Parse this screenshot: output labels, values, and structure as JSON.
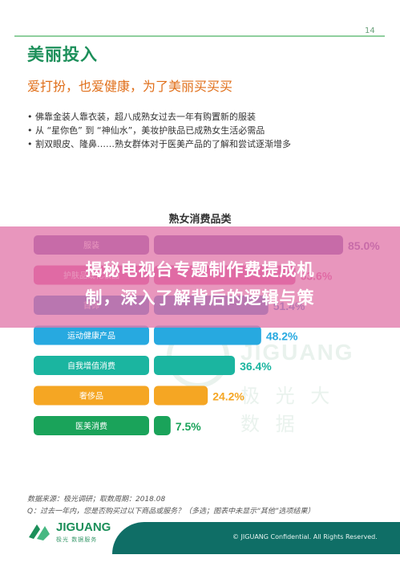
{
  "page": {
    "number": "14"
  },
  "header": {
    "title": "美丽投入",
    "subtitle": "爱打扮，也爱健康，为了美丽买买买"
  },
  "bullets": [
    "• 佛靠金装人靠衣装，超八成熟女过去一年有购置新的服装",
    "• 从 “星你色” 到 “神仙水”，美妆护肤品已成熟女生活必需品",
    "• 割双眼皮、隆鼻……熟女群体对于医美产品的了解和尝试逐渐增多"
  ],
  "colors": {
    "accent": "#1c8f5a",
    "subtitle": "#e06f1a",
    "footer": "#0f6e66",
    "banner": "#e278aa"
  },
  "chart_data": {
    "type": "bar",
    "title": "熟女消费品类",
    "orientation": "horizontal",
    "categories": [
      "服装",
      "护肤品或化妆品",
      "首饰",
      "运动健康产品",
      "自我增值消费",
      "奢侈品",
      "医美消费"
    ],
    "values": [
      85.0,
      63.6,
      51.4,
      48.2,
      36.4,
      24.2,
      7.5
    ],
    "value_labels": [
      "85.0%",
      "63.6%",
      "51.4%",
      "48.2%",
      "36.4%",
      "24.2%",
      "7.5%"
    ],
    "colors": [
      "#6a3ea1",
      "#d9368f",
      "#2b6fc4",
      "#27a9e0",
      "#1bb5a0",
      "#f5a623",
      "#1aa35a"
    ],
    "xlim": [
      0,
      85
    ],
    "grid": false,
    "legend": "none"
  },
  "watermark": {
    "brand": "JIGUANG",
    "sub": "极 光 大 数 据"
  },
  "footnotes": {
    "source": "数据来源：极光调研；取数周期：2018.08",
    "question": "Q：过去一年内，您是否购买过以下商品或服务？（多选；图表中未显示“其他”选项结果）"
  },
  "footer": {
    "brand": "JIGUANG",
    "tagline": "极光 数据服务",
    "copyright": "© JIGUANG Confidential. All Rights Reserved."
  },
  "banner": {
    "line1": "揭秘电视台专题制作费提成机",
    "line2": "制，深入了解背后的逻辑与策"
  }
}
